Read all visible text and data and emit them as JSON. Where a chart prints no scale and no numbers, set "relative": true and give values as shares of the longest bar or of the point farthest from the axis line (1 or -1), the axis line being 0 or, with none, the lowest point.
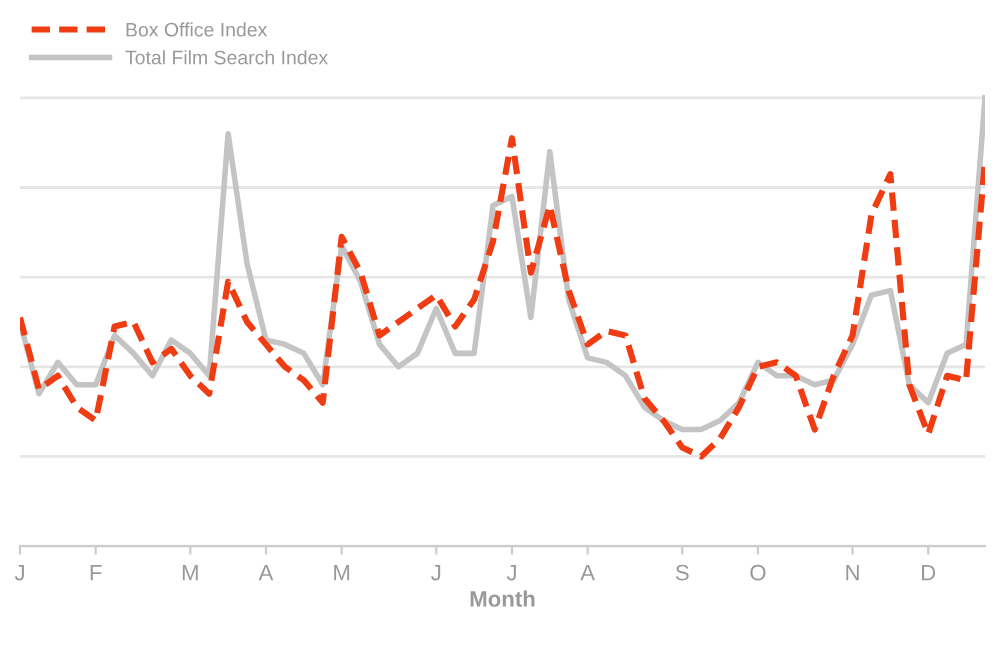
{
  "chart_data": {
    "type": "line",
    "xlabel": "Month",
    "relative": true,
    "grid": "y",
    "legend": "top left",
    "marker": "none",
    "categories": [
      "J",
      null,
      null,
      null,
      "F",
      null,
      null,
      null,
      null,
      "M",
      null,
      null,
      null,
      "A",
      null,
      null,
      null,
      "M",
      null,
      null,
      null,
      null,
      "J",
      null,
      null,
      null,
      "J",
      null,
      null,
      null,
      "A",
      null,
      null,
      null,
      null,
      "S",
      null,
      null,
      null,
      "O",
      null,
      null,
      null,
      null,
      "N",
      null,
      null,
      null,
      "D",
      null,
      null,
      null
    ],
    "series": [
      {
        "name": "Box Office Index",
        "color": "#f03c12",
        "line_style": "dashed",
        "values": [
          0.51,
          0.35,
          0.38,
          0.31,
          0.28,
          0.49,
          0.5,
          0.41,
          0.44,
          0.38,
          0.34,
          0.59,
          0.5,
          0.45,
          0.4,
          0.37,
          0.32,
          0.69,
          0.61,
          0.47,
          0.5,
          0.53,
          0.56,
          0.49,
          0.55,
          0.68,
          0.91,
          0.61,
          0.76,
          0.57,
          0.45,
          0.48,
          0.47,
          0.33,
          0.28,
          0.22,
          0.2,
          0.24,
          0.31,
          0.4,
          0.41,
          0.38,
          0.26,
          0.38,
          0.47,
          0.74,
          0.83,
          0.36,
          0.25,
          0.38,
          0.37,
          0.86
        ]
      },
      {
        "name": "Total Film Search Index",
        "color": "#c4c4c4",
        "line_style": "solid",
        "values": [
          0.5,
          0.34,
          0.41,
          0.36,
          0.36,
          0.47,
          0.43,
          0.38,
          0.46,
          0.43,
          0.38,
          0.92,
          0.63,
          0.46,
          0.45,
          0.43,
          0.36,
          0.67,
          0.59,
          0.45,
          0.4,
          0.43,
          0.53,
          0.43,
          0.43,
          0.76,
          0.78,
          0.51,
          0.88,
          0.55,
          0.42,
          0.41,
          0.38,
          0.31,
          0.28,
          0.26,
          0.26,
          0.28,
          0.32,
          0.41,
          0.38,
          0.38,
          0.36,
          0.37,
          0.45,
          0.56,
          0.57,
          0.36,
          0.32,
          0.43,
          0.45,
          1.0
        ]
      }
    ]
  }
}
